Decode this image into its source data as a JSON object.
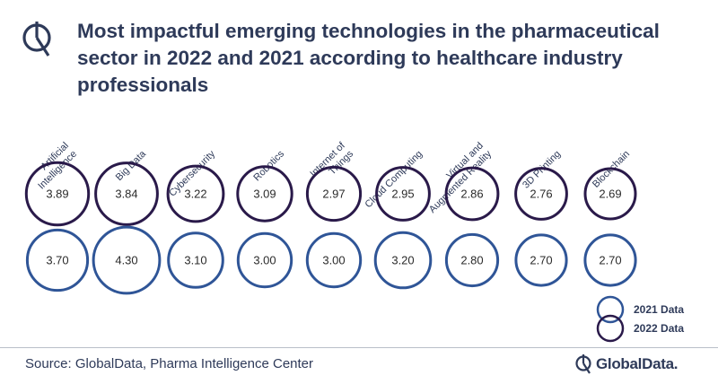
{
  "title": "Most impactful emerging technologies in the pharmaceutical sector in 2022 and 2021 according to healthcare industry professionals",
  "source": "Source: GlobalData, Pharma Intelligence Center",
  "brand": {
    "name": "GlobalData.",
    "icon": "globaldata-logo-icon"
  },
  "colors": {
    "series_2022": "#2a1a4a",
    "series_2021": "#2f5597",
    "text": "#2e3a59"
  },
  "chart_data": {
    "type": "bubble",
    "categories": [
      [
        "Artificial",
        "Intelligence"
      ],
      [
        "Big Data"
      ],
      [
        "Cybersecurity"
      ],
      [
        "Robotics"
      ],
      [
        "Internet of",
        "Things"
      ],
      [
        "Cloud Computing"
      ],
      [
        "Virtual and",
        "Augmented Reality"
      ],
      [
        "3D Printing"
      ],
      [
        "Blockchain"
      ]
    ],
    "series": [
      {
        "name": "2022 Data",
        "values": [
          "3.89",
          "3.84",
          "3.22",
          "3.09",
          "2.97",
          "2.95",
          "2.86",
          "2.76",
          "2.69"
        ],
        "color": "#2a1a4a"
      },
      {
        "name": "2021 Data",
        "values": [
          "3.70",
          "4.30",
          "3.10",
          "3.00",
          "3.00",
          "3.20",
          "2.80",
          "2.70",
          "2.70"
        ],
        "color": "#2f5597"
      }
    ],
    "legend": {
      "position": "bottom-right",
      "order": [
        "2021 Data",
        "2022 Data"
      ]
    }
  }
}
